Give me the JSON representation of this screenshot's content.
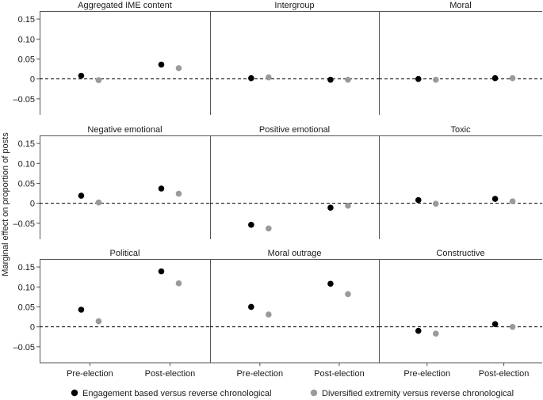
{
  "ylabel": "Marginal effect on proportion of posts",
  "legend": [
    {
      "label": "Engagement based versus reverse chronological",
      "color": "#000000"
    },
    {
      "label": "Diversified extremity versus reverse chronological",
      "color": "#9a9a9a"
    }
  ],
  "chart_data": {
    "type": "scatter",
    "layout": "3x3 facet grid",
    "categories": [
      "Pre-election",
      "Post-election"
    ],
    "ylabel": "Marginal effect on proportion of posts",
    "reference_line": 0,
    "legend_position": "bottom",
    "row_ranges": [
      [
        -0.09,
        0.17
      ],
      [
        -0.09,
        0.17
      ],
      [
        -0.09,
        0.17
      ]
    ],
    "y_ticks": [
      -0.05,
      0,
      0.05,
      0.1,
      0.15
    ],
    "y_tick_labels": [
      "–0.05",
      "0",
      "0.05",
      "0.10",
      "0.15"
    ],
    "series_names": [
      "Engagement based versus reverse chronological",
      "Diversified extremity versus reverse chronological"
    ],
    "series_colors": [
      "#000000",
      "#9a9a9a"
    ],
    "panels": [
      {
        "title": "Aggregated IME content",
        "engagement": [
          0.008,
          0.036
        ],
        "diversified": [
          -0.003,
          0.027
        ]
      },
      {
        "title": "Intergroup",
        "engagement": [
          0.002,
          -0.002
        ],
        "diversified": [
          0.004,
          -0.002
        ]
      },
      {
        "title": "Moral",
        "engagement": [
          0.0,
          0.002
        ],
        "diversified": [
          -0.002,
          0.002
        ]
      },
      {
        "title": "Negative emotional",
        "engagement": [
          0.019,
          0.037
        ],
        "diversified": [
          0.002,
          0.024
        ]
      },
      {
        "title": "Positive emotional",
        "engagement": [
          -0.054,
          -0.011
        ],
        "diversified": [
          -0.063,
          -0.006
        ]
      },
      {
        "title": "Toxic",
        "engagement": [
          0.008,
          0.011
        ],
        "diversified": [
          -0.001,
          0.005
        ]
      },
      {
        "title": "Political",
        "engagement": [
          0.043,
          0.139
        ],
        "diversified": [
          0.014,
          0.109
        ]
      },
      {
        "title": "Moral outrage",
        "engagement": [
          0.05,
          0.108
        ],
        "diversified": [
          0.031,
          0.082
        ]
      },
      {
        "title": "Constructive",
        "engagement": [
          -0.01,
          0.007
        ],
        "diversified": [
          -0.017,
          0.0
        ]
      }
    ]
  }
}
